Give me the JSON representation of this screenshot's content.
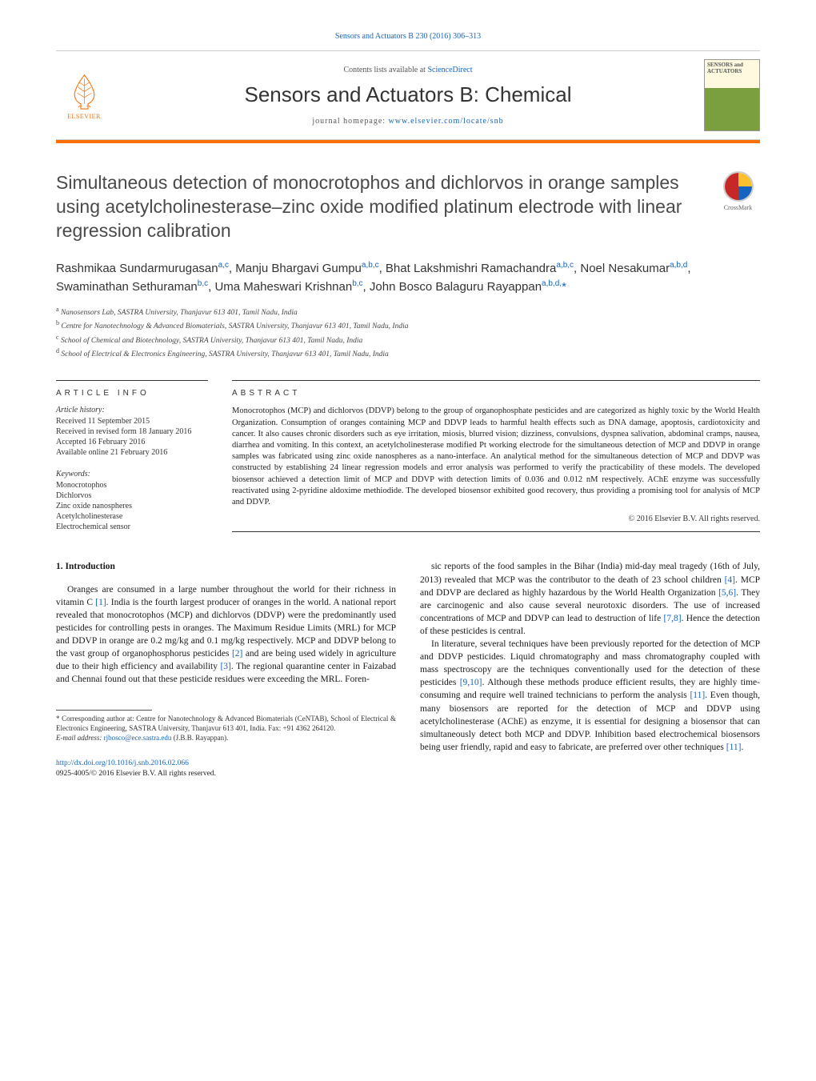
{
  "header": {
    "citation": "Sensors and Actuators B 230 (2016) 306–313",
    "contents_prefix": "Contents lists available at ",
    "contents_link": "ScienceDirect",
    "journal_name": "Sensors and Actuators B: Chemical",
    "homepage_prefix": "journal homepage: ",
    "homepage_url": "www.elsevier.com/locate/snb",
    "elsevier_label": "ELSEVIER",
    "cover_title": "SENSORS and ACTUATORS",
    "crossmark_label": "CrossMark"
  },
  "paper": {
    "title": "Simultaneous detection of monocrotophos and dichlorvos in orange samples using acetylcholinesterase–zinc oxide modified platinum electrode with linear regression calibration",
    "authors_html": "Rashmikaa Sundarmurugasan<sup>a,c</sup>, Manju Bhargavi Gumpu<sup>a,b,c</sup>, Bhat Lakshmishri Ramachandra<sup>a,b,c</sup>, Noel Nesakumar<sup>a,b,d</sup>, Swaminathan Sethuraman<sup>b,c</sup>, Uma Maheswari Krishnan<sup>b,c</sup>, John Bosco Balaguru Rayappan<sup>a,b,d,</sup><span class='star'>*</span>",
    "affiliations": [
      {
        "sup": "a",
        "text": "Nanosensors Lab, SASTRA University, Thanjavur 613 401, Tamil Nadu, India"
      },
      {
        "sup": "b",
        "text": "Centre for Nanotechnology & Advanced Biomaterials, SASTRA University, Thanjavur 613 401, Tamil Nadu, India"
      },
      {
        "sup": "c",
        "text": "School of Chemical and Biotechnology, SASTRA University, Thanjavur 613 401, Tamil Nadu, India"
      },
      {
        "sup": "d",
        "text": "School of Electrical & Electronics Engineering, SASTRA University, Thanjavur 613 401, Tamil Nadu, India"
      }
    ]
  },
  "article_info": {
    "heading": "article info",
    "history_label": "Article history:",
    "history": [
      "Received 11 September 2015",
      "Received in revised form 18 January 2016",
      "Accepted 16 February 2016",
      "Available online 21 February 2016"
    ],
    "keywords_label": "Keywords:",
    "keywords": [
      "Monocrotophos",
      "Dichlorvos",
      "Zinc oxide nanospheres",
      "Acetylcholinesterase",
      "Electrochemical sensor"
    ]
  },
  "abstract": {
    "heading": "abstract",
    "text": "Monocrotophos (MCP) and dichlorvos (DDVP) belong to the group of organophosphate pesticides and are categorized as highly toxic by the World Health Organization. Consumption of oranges containing MCP and DDVP leads to harmful health effects such as DNA damage, apoptosis, cardiotoxicity and cancer. It also causes chronic disorders such as eye irritation, miosis, blurred vision; dizziness, convulsions, dyspnea salivation, abdominal cramps, nausea, diarrhea and vomiting. In this context, an acetylcholinesterase modified Pt working electrode for the simultaneous detection of MCP and DDVP in orange samples was fabricated using zinc oxide nanospheres as a nano-interface. An analytical method for the simultaneous detection of MCP and DDVP was constructed by establishing 24 linear regression models and error analysis was performed to verify the practicability of these models. The developed biosensor achieved a detection limit of MCP and DDVP with detection limits of 0.036 and 0.012 nM respectively. AChE enzyme was successfully reactivated using 2-pyridine aldoxime methiodide. The developed biosensor exhibited good recovery, thus providing a promising tool for analysis of MCP and DDVP.",
    "copyright": "© 2016 Elsevier B.V. All rights reserved."
  },
  "body": {
    "section_heading": "1. Introduction",
    "col1_p1": "Oranges are consumed in a large number throughout the world for their richness in vitamin C [1]. India is the fourth largest producer of oranges in the world. A national report revealed that monocrotophos (MCP) and dichlorvos (DDVP) were the predominantly used pesticides for controlling pests in oranges. The Maximum Residue Limits (MRL) for MCP and DDVP in orange are 0.2 mg/kg and 0.1 mg/kg respectively. MCP and DDVP belong to the vast group of organophosphorus pesticides [2] and are being used widely in agriculture due to their high efficiency and availability [3]. The regional quarantine center in Faizabad and Chennai found out that these pesticide residues were exceeding the MRL. Foren-",
    "col2_p1": "sic reports of the food samples in the Bihar (India) mid-day meal tragedy (16th of July, 2013) revealed that MCP was the contributor to the death of 23 school children [4]. MCP and DDVP are declared as highly hazardous by the World Health Organization [5,6]. They are carcinogenic and also cause several neurotoxic disorders. The use of increased concentrations of MCP and DDVP can lead to destruction of life [7,8]. Hence the detection of these pesticides is central.",
    "col2_p2": "In literature, several techniques have been previously reported for the detection of MCP and DDVP pesticides. Liquid chromatography and mass chromatography coupled with mass spectroscopy are the techniques conventionally used for the detection of these pesticides [9,10]. Although these methods produce efficient results, they are highly time-consuming and require well trained technicians to perform the analysis [11]. Even though, many biosensors are reported for the detection of MCP and DDVP using acetylcholinesterase (AChE) as enzyme, it is essential for designing a biosensor that can simultaneously detect both MCP and DDVP. Inhibition based electrochemical biosensors being user friendly, rapid and easy to fabricate, are preferred over other techniques [11]."
  },
  "footnote": {
    "corr": "* Corresponding author at: Centre for Nanotechnology & Advanced Biomaterials (CeNTAB), School of Electrical & Electronics Engineering, SASTRA University, Thanjavur 613 401, India. Fax: +91 4362 264120.",
    "email_label": "E-mail address: ",
    "email": "rjbosco@ece.sastra.edu",
    "email_suffix": " (J.B.B. Rayappan)."
  },
  "doi": {
    "url": "http://dx.doi.org/10.1016/j.snb.2016.02.066",
    "issn_line": "0925-4005/© 2016 Elsevier B.V. All rights reserved."
  },
  "cites": {
    "c1": "[1]",
    "c2": "[2]",
    "c3": "[3]",
    "c4": "[4]",
    "c56": "[5,6]",
    "c78": "[7,8]",
    "c910": "[9,10]",
    "c11a": "[11]",
    "c11b": "[11]"
  },
  "colors": {
    "link": "#1565c0",
    "orange": "#ff6f00",
    "text": "#1a1a1a",
    "muted": "#555555",
    "rule": "#333333"
  }
}
